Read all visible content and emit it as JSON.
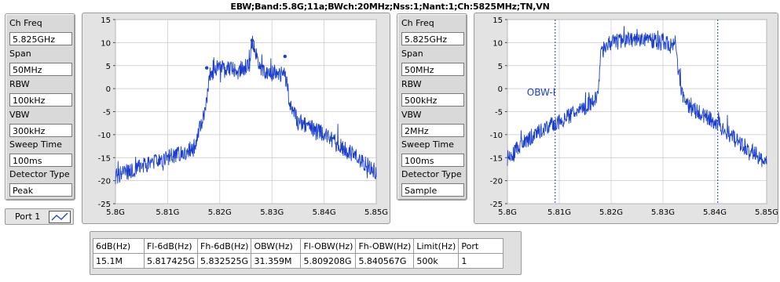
{
  "title": "EBW;Band:5.8G;11a;BWch:20MHz;Nss:1;Nant:1;Ch:5825MHz;TN,VN",
  "left_settings": {
    "ch_freq_label": "Ch Freq",
    "ch_freq": "5.825GHz",
    "span_label": "Span",
    "span": "50MHz",
    "rbw_label": "RBW",
    "rbw": "100kHz",
    "vbw_label": "VBW",
    "vbw": "300kHz",
    "sweep_label": "Sweep Time",
    "sweep": "100ms",
    "detector_label": "Detector Type",
    "detector": "Peak"
  },
  "right_settings": {
    "ch_freq_label": "Ch Freq",
    "ch_freq": "5.825GHz",
    "span_label": "Span",
    "span": "50MHz",
    "rbw_label": "RBW",
    "rbw": "500kHz",
    "vbw_label": "VBW",
    "vbw": "2MHz",
    "sweep_label": "Sweep Time",
    "sweep": "100ms",
    "detector_label": "Detector Type",
    "detector": "Sample"
  },
  "port": {
    "label": "Port 1"
  },
  "colors": {
    "trace": "#1a3fd0",
    "plot_bg": "#ffffff",
    "frame": "#e3e3e3",
    "grid": "#c8c8c8"
  },
  "table": {
    "headers": [
      "6dB(Hz)",
      "Fl-6dB(Hz)",
      "Fh-6dB(Hz)",
      "OBW(Hz)",
      "Fl-OBW(Hz)",
      "Fh-OBW(Hz)",
      "Limit(Hz)",
      "Port"
    ],
    "row": [
      "15.1M",
      "5.817425G",
      "5.832525G",
      "31.359M",
      "5.809208G",
      "5.840567G",
      "500k",
      "1"
    ]
  },
  "chart_data": [
    {
      "type": "line",
      "name": "left-spectrum",
      "xlim": [
        5.8,
        5.85
      ],
      "ylim": [
        -25,
        15
      ],
      "x_ticks": [
        "5.8G",
        "5.81G",
        "5.82G",
        "5.83G",
        "5.84G",
        "5.85G"
      ],
      "y_ticks": [
        "15",
        "10",
        "5",
        "0",
        "-5",
        "-10",
        "-15",
        "-20",
        "-25"
      ],
      "x": [
        5.8,
        5.805,
        5.81,
        5.815,
        5.8174,
        5.818,
        5.82,
        5.8235,
        5.8255,
        5.8262,
        5.828,
        5.8325,
        5.8335,
        5.835,
        5.84,
        5.845,
        5.85
      ],
      "y": [
        -19,
        -17,
        -15,
        -13,
        -4,
        3,
        5,
        4,
        5,
        10,
        4,
        3,
        -3,
        -7,
        -10,
        -14,
        -18
      ],
      "markers": [
        {
          "x": 5.8175,
          "y": 4.5
        },
        {
          "x": 5.8262,
          "y": 10.5
        },
        {
          "x": 5.8325,
          "y": 7
        }
      ]
    },
    {
      "type": "line",
      "name": "right-spectrum",
      "xlim": [
        5.8,
        5.85
      ],
      "ylim": [
        -25,
        15
      ],
      "x_ticks": [
        "5.8G",
        "5.81G",
        "5.82G",
        "5.83G",
        "5.84G",
        "5.85G"
      ],
      "y_ticks": [
        "15",
        "10",
        "5",
        "0",
        "-5",
        "-10",
        "-15",
        "-20",
        "-25"
      ],
      "x": [
        5.8,
        5.805,
        5.81,
        5.815,
        5.8174,
        5.818,
        5.82,
        5.825,
        5.83,
        5.8325,
        5.8335,
        5.835,
        5.84,
        5.845,
        5.85
      ],
      "y": [
        -15,
        -10,
        -7,
        -4,
        -2,
        8,
        10,
        11,
        10,
        9,
        -1,
        -4,
        -7,
        -12,
        -16
      ],
      "obw_lines": [
        5.809208,
        5.840567
      ],
      "obw_text": "OBW-l"
    }
  ]
}
